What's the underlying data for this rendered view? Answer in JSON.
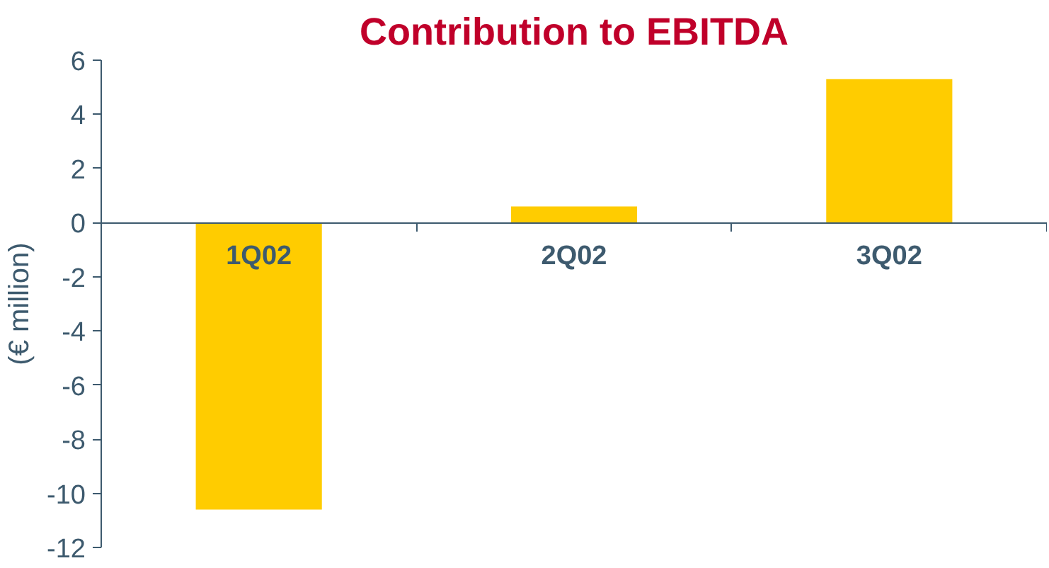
{
  "chart_data": {
    "type": "bar",
    "title": "Contribution to EBITDA",
    "ylabel": "(€ million)",
    "categories": [
      "1Q02",
      "2Q02",
      "3Q02"
    ],
    "series": [
      {
        "color": "#ffcc00",
        "values": [
          -10.6,
          0.6,
          5.3
        ]
      }
    ],
    "ylim": [
      -12,
      6
    ],
    "yticks": [
      -12,
      -10,
      -8,
      -6,
      -4,
      -2,
      0,
      2,
      4,
      6
    ]
  }
}
